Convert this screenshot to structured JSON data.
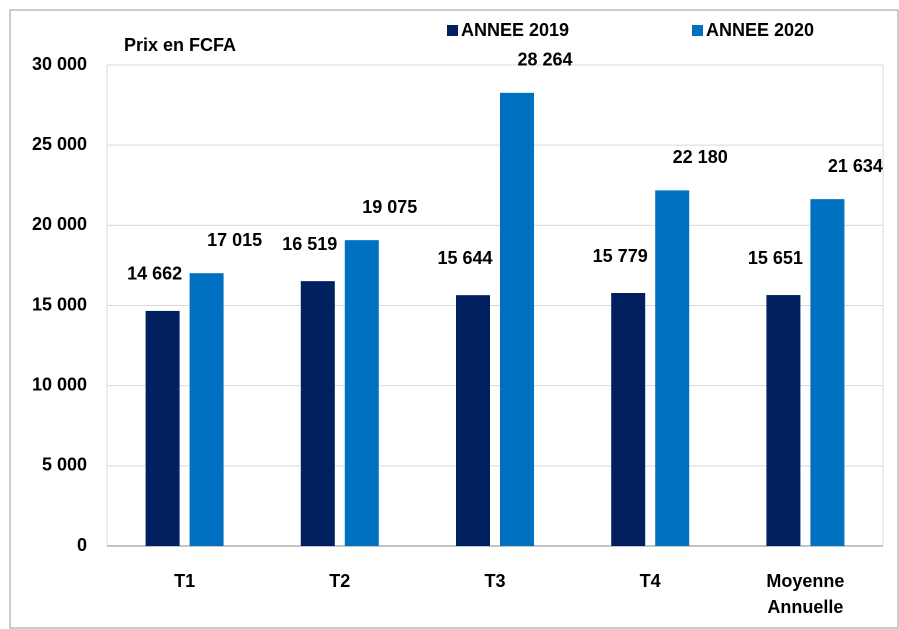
{
  "chart_data": {
    "type": "bar",
    "axis_label": "Prix en FCFA",
    "categories": [
      "T1",
      "T2",
      "T3",
      "T4",
      "Moyenne\nAnnuelle"
    ],
    "series": [
      {
        "name": "ANNEE 2019",
        "color": "#002060",
        "values": [
          14662,
          16519,
          15644,
          15779,
          15651
        ],
        "value_labels": [
          "14 662",
          "16 519",
          "15 644",
          "15 779",
          "15 651"
        ]
      },
      {
        "name": "ANNEE 2020",
        "color": "#0070c0",
        "values": [
          17015,
          19075,
          28264,
          22180,
          21634
        ],
        "value_labels": [
          "17 015",
          "19 075",
          "28 264",
          "22 180",
          "21 634"
        ]
      }
    ],
    "ylim": [
      0,
      30000
    ],
    "yticks": [
      0,
      {
        "value": 5000,
        "label": "5 000"
      },
      {
        "value": 10000,
        "label": "10 000"
      },
      {
        "value": 15000,
        "label": "15 000"
      },
      {
        "value": 20000,
        "label": "20 000"
      },
      {
        "value": 25000,
        "label": "25 000"
      },
      {
        "value": 30000,
        "label": "30 000"
      }
    ],
    "grid": true,
    "legend": "top"
  }
}
